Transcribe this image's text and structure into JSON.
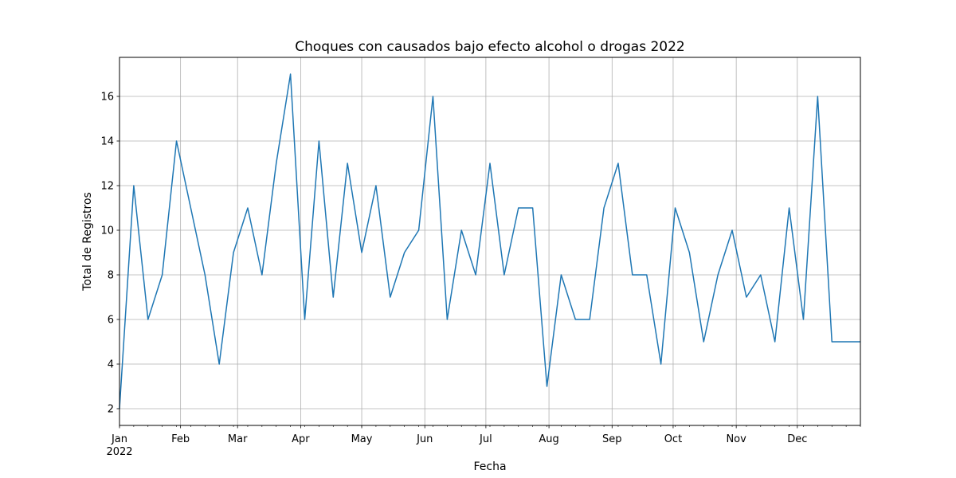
{
  "chart_data": {
    "type": "line",
    "title": "Choques con causados bajo efecto alcohol o drogas 2022",
    "xlabel": "Fecha",
    "ylabel": "Total de Registros",
    "x_tick_labels": [
      "Jan",
      "Feb",
      "Mar",
      "Apr",
      "May",
      "Jun",
      "Jul",
      "Aug",
      "Sep",
      "Oct",
      "Nov",
      "Dec"
    ],
    "x_year_label": "2022",
    "y_ticks": [
      2,
      4,
      6,
      8,
      10,
      12,
      14,
      16
    ],
    "ylim": [
      1.25,
      17.75
    ],
    "xlim": [
      "2022-01-02",
      "2023-01-01"
    ],
    "grid": true,
    "line_color": "#1f77b4",
    "series": [
      {
        "x": [
          "2022-01-02",
          "2022-01-09",
          "2022-01-16",
          "2022-01-23",
          "2022-01-30",
          "2022-02-06",
          "2022-02-13",
          "2022-02-20",
          "2022-02-27",
          "2022-03-06",
          "2022-03-13",
          "2022-03-20",
          "2022-03-27",
          "2022-04-03",
          "2022-04-10",
          "2022-04-17",
          "2022-04-24",
          "2022-05-01",
          "2022-05-08",
          "2022-05-15",
          "2022-05-22",
          "2022-05-29",
          "2022-06-05",
          "2022-06-12",
          "2022-06-19",
          "2022-06-26",
          "2022-07-03",
          "2022-07-10",
          "2022-07-17",
          "2022-07-24",
          "2022-07-31",
          "2022-08-07",
          "2022-08-14",
          "2022-08-21",
          "2022-08-28",
          "2022-09-04",
          "2022-09-11",
          "2022-09-18",
          "2022-09-25",
          "2022-10-02",
          "2022-10-09",
          "2022-10-16",
          "2022-10-23",
          "2022-10-30",
          "2022-11-06",
          "2022-11-13",
          "2022-11-20",
          "2022-11-27",
          "2022-12-04",
          "2022-12-11",
          "2022-12-18",
          "2022-12-25",
          "2023-01-01"
        ],
        "values": [
          2,
          12,
          6,
          8,
          14,
          11,
          8,
          4,
          9,
          11,
          8,
          13,
          17,
          6,
          14,
          7,
          13,
          9,
          12,
          7,
          9,
          10,
          16,
          6,
          10,
          8,
          13,
          8,
          11,
          11,
          3,
          8,
          6,
          6,
          11,
          13,
          8,
          8,
          4,
          11,
          9,
          5,
          8,
          10,
          7,
          8,
          5,
          11,
          6,
          16,
          5,
          5,
          5
        ]
      }
    ]
  }
}
